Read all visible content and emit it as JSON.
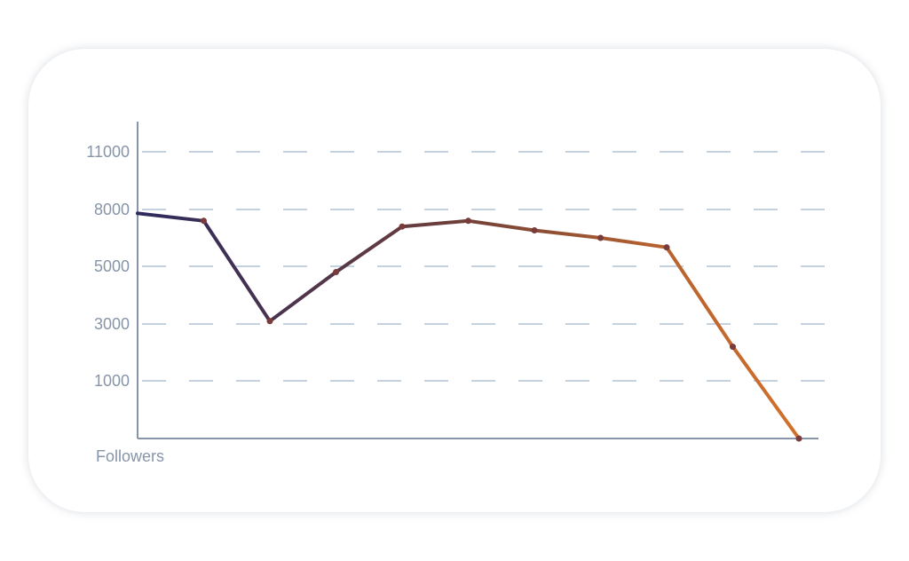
{
  "chart_data": {
    "type": "line",
    "xlabel": "",
    "ylabel": "Followers",
    "y_ticks": [
      1000,
      3000,
      5000,
      8000,
      11000
    ],
    "grid": true,
    "x": [
      0,
      1,
      2,
      3,
      4,
      5,
      6,
      7,
      8,
      9,
      10
    ],
    "values": [
      7800,
      7400,
      3100,
      4800,
      7100,
      7400,
      6900,
      6500,
      6000,
      2200,
      0
    ],
    "colors": {
      "gradient_start": "#2d2a5e",
      "gradient_mid": "#6e3f3a",
      "gradient_end": "#d2712c",
      "marker": "#7a3b3b",
      "axis": "#8795a8",
      "grid": "#c6d1df"
    }
  }
}
